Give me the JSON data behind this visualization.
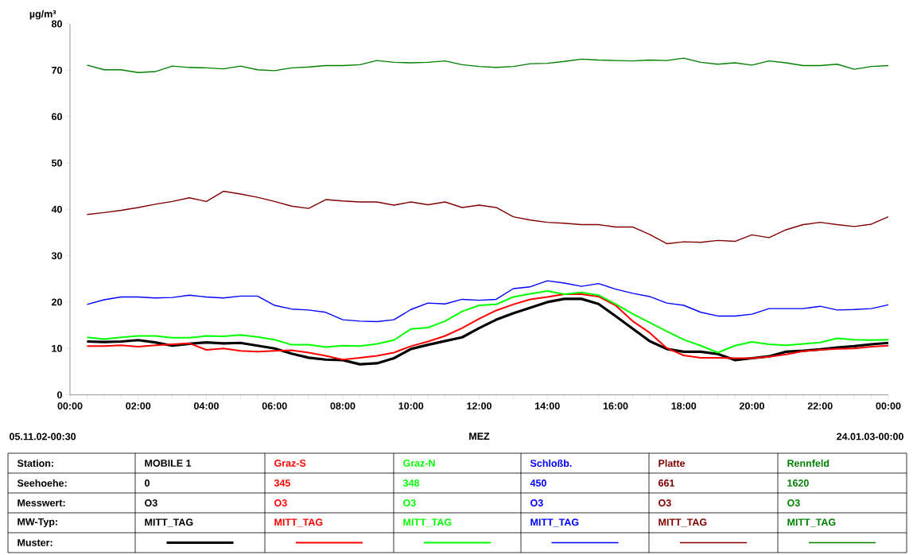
{
  "chart_data": {
    "type": "line",
    "xlabel": "MEZ",
    "ylabel": "µg/m³",
    "x": [
      0.5,
      1,
      1.5,
      2,
      2.5,
      3,
      3.5,
      4,
      4.5,
      5,
      5.5,
      6,
      6.5,
      7,
      7.5,
      8,
      8.5,
      9,
      9.5,
      10,
      10.5,
      11,
      11.5,
      12,
      12.5,
      13,
      13.5,
      14,
      14.5,
      15,
      15.5,
      16,
      16.5,
      17,
      17.5,
      18,
      18.5,
      19,
      19.5,
      20,
      20.5,
      21,
      21.5,
      22,
      22.5,
      23,
      23.5,
      24
    ],
    "xlim": [
      0,
      24
    ],
    "xticks": [
      {
        "value": 0,
        "label": "00:00"
      },
      {
        "value": 2,
        "label": "02:00"
      },
      {
        "value": 4,
        "label": "04:00"
      },
      {
        "value": 6,
        "label": "06:00"
      },
      {
        "value": 8,
        "label": "08:00"
      },
      {
        "value": 10,
        "label": "10:00"
      },
      {
        "value": 12,
        "label": "12:00"
      },
      {
        "value": 14,
        "label": "14:00"
      },
      {
        "value": 16,
        "label": "16:00"
      },
      {
        "value": 18,
        "label": "18:00"
      },
      {
        "value": 20,
        "label": "20:00"
      },
      {
        "value": 22,
        "label": "22:00"
      },
      {
        "value": 24,
        "label": "00:00"
      }
    ],
    "ylim": [
      0,
      80
    ],
    "yticks": [
      0,
      10,
      20,
      30,
      40,
      50,
      60,
      70,
      80
    ],
    "series": [
      {
        "name": "MOBILE 1",
        "color": "#000000",
        "values": [
          11.5,
          11.4,
          11.5,
          11.8,
          11.3,
          10.6,
          11.0,
          11.3,
          11.1,
          11.2,
          10.6,
          10.0,
          8.9,
          8.0,
          7.6,
          7.5,
          6.6,
          6.8,
          7.9,
          9.9,
          10.8,
          11.6,
          12.4,
          14.4,
          16.2,
          17.6,
          18.8,
          20.0,
          20.7,
          20.7,
          19.6,
          17.0,
          14.3,
          11.6,
          9.9,
          9.3,
          9.3,
          8.8,
          7.5,
          7.9,
          8.3,
          9.3,
          9.5,
          9.8,
          10.2,
          10.5,
          10.9,
          11.2
        ]
      },
      {
        "name": "Graz-S",
        "color": "#ff0000",
        "values": [
          10.5,
          10.5,
          10.7,
          10.4,
          10.7,
          10.9,
          11.1,
          9.7,
          10.0,
          9.5,
          9.3,
          9.5,
          9.6,
          9.1,
          8.4,
          7.6,
          8.0,
          8.4,
          9.1,
          10.5,
          11.5,
          12.7,
          14.4,
          16.4,
          18.2,
          19.5,
          20.6,
          21.1,
          21.7,
          21.7,
          21.2,
          19.3,
          15.9,
          13.4,
          10.1,
          8.5,
          8.0,
          8.0,
          7.9,
          7.9,
          8.2,
          8.7,
          9.4,
          9.7,
          9.9,
          10.0,
          10.4,
          10.6
        ]
      },
      {
        "name": "Graz-N",
        "color": "#00ff00",
        "values": [
          12.4,
          12.0,
          12.4,
          12.7,
          12.7,
          12.3,
          12.3,
          12.7,
          12.6,
          12.9,
          12.5,
          11.9,
          10.8,
          10.8,
          10.3,
          10.6,
          10.5,
          11.0,
          11.8,
          14.2,
          14.5,
          15.9,
          18.0,
          19.3,
          19.5,
          21.1,
          21.8,
          22.4,
          21.7,
          22.1,
          21.5,
          19.6,
          17.5,
          15.6,
          13.7,
          11.9,
          10.6,
          9.1,
          10.6,
          11.4,
          10.9,
          10.7,
          11.0,
          11.3,
          12.2,
          11.9,
          11.8,
          11.9
        ]
      },
      {
        "name": "Schloßb.",
        "color": "#0000ff",
        "values": [
          19.5,
          20.5,
          21.1,
          21.1,
          20.9,
          21.0,
          21.5,
          21.1,
          20.9,
          21.3,
          21.3,
          19.3,
          18.5,
          18.3,
          17.8,
          16.2,
          15.9,
          15.8,
          16.2,
          18.4,
          19.8,
          19.6,
          20.6,
          20.4,
          20.6,
          22.9,
          23.3,
          24.6,
          24.1,
          23.4,
          24.0,
          22.8,
          21.9,
          21.2,
          19.8,
          19.3,
          17.8,
          17.0,
          17.0,
          17.4,
          18.6,
          18.6,
          18.6,
          19.1,
          18.3,
          18.4,
          18.6,
          19.4
        ]
      },
      {
        "name": "Platte",
        "color": "#800000",
        "values": [
          38.9,
          39.3,
          39.8,
          40.4,
          41.1,
          41.7,
          42.5,
          41.7,
          43.9,
          43.3,
          42.6,
          41.7,
          40.7,
          40.2,
          42.1,
          41.8,
          41.6,
          41.6,
          40.9,
          41.6,
          41.0,
          41.6,
          40.4,
          40.9,
          40.4,
          38.4,
          37.7,
          37.2,
          37.0,
          36.7,
          36.7,
          36.2,
          36.2,
          34.6,
          32.6,
          33.0,
          32.9,
          33.3,
          33.1,
          34.5,
          33.9,
          35.6,
          36.7,
          37.2,
          36.7,
          36.3,
          36.8,
          38.4
        ]
      },
      {
        "name": "Rennfeld",
        "color": "#008000",
        "values": [
          71.1,
          70.1,
          70.1,
          69.5,
          69.7,
          70.9,
          70.6,
          70.5,
          70.3,
          70.9,
          70.1,
          69.9,
          70.5,
          70.7,
          71.0,
          71.0,
          71.2,
          72.1,
          71.7,
          71.6,
          71.7,
          72.0,
          71.2,
          70.8,
          70.6,
          70.8,
          71.4,
          71.5,
          71.9,
          72.4,
          72.2,
          72.1,
          72.0,
          72.2,
          72.1,
          72.6,
          71.7,
          71.3,
          71.6,
          71.1,
          72.0,
          71.6,
          71.0,
          71.0,
          71.3,
          70.2,
          70.8,
          71.0
        ]
      }
    ],
    "annotations": [
      "05.11.02-00:30",
      "24.01.03-00:00",
      "Station:",
      "Seehoehe:",
      "Messwert:",
      "MW-Typ:",
      "Muster:",
      "0",
      "O3",
      "MITT_TAG",
      "345",
      "O3",
      "MITT_TAG",
      "348",
      "O3",
      "MITT_TAG",
      "450",
      "O3",
      "MITT_TAG",
      "661",
      "O3",
      "MITT_TAG",
      "1620",
      "O3",
      "MITT_TAG"
    ]
  }
}
